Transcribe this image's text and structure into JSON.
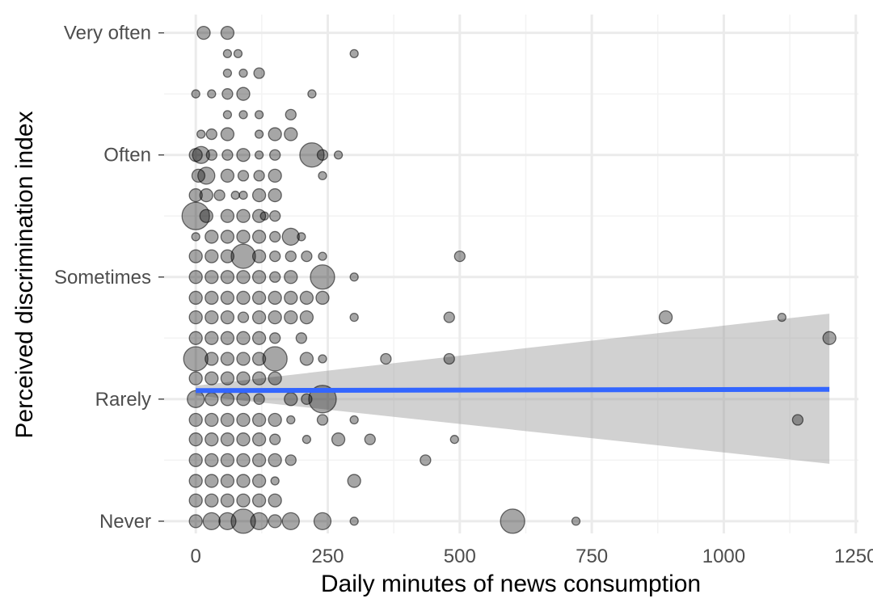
{
  "colors": {
    "background": "#ffffff",
    "grid_major": "#ebebeb",
    "grid_minor": "#f3f3f3",
    "points": "#000000",
    "regression_line": "#3366ff",
    "confidence_band": "#999999",
    "tick_text": "#4d4d4d",
    "axis_title": "#000000"
  },
  "chart_data": {
    "type": "scatter",
    "title": "",
    "xlabel": "Daily minutes of news consumption",
    "ylabel": "Perceived discrimination index",
    "xlim": [
      -60,
      1255
    ],
    "ylim": [
      -0.1,
      4.15
    ],
    "x_ticks": [
      0,
      250,
      500,
      750,
      1000,
      1250
    ],
    "x_tick_labels": [
      "0",
      "250",
      "500",
      "750",
      "1000",
      "1250"
    ],
    "x_minor_ticks": [
      125,
      375,
      625,
      875,
      1125
    ],
    "y_ticks": [
      0,
      1,
      2,
      3,
      4
    ],
    "y_tick_labels": [
      "Never",
      "Rarely",
      "Sometimes",
      "Often",
      "Very often"
    ],
    "y_minor_ticks": [
      0.5,
      1.5,
      2.5,
      3.5
    ],
    "grid": true,
    "legend": "none",
    "point_alpha": 0.35,
    "size_encoding": "point radius varies per observation (no legend shown)",
    "points": [
      {
        "x": 15,
        "y": 4.0,
        "r": 3
      },
      {
        "x": 60,
        "y": 4.0,
        "r": 3
      },
      {
        "x": 60,
        "y": 3.83,
        "r": 1
      },
      {
        "x": 80,
        "y": 3.83,
        "r": 1
      },
      {
        "x": 300,
        "y": 3.83,
        "r": 1
      },
      {
        "x": 60,
        "y": 3.67,
        "r": 1
      },
      {
        "x": 90,
        "y": 3.67,
        "r": 1
      },
      {
        "x": 120,
        "y": 3.67,
        "r": 2
      },
      {
        "x": 0,
        "y": 3.5,
        "r": 1
      },
      {
        "x": 30,
        "y": 3.5,
        "r": 1
      },
      {
        "x": 60,
        "y": 3.5,
        "r": 2
      },
      {
        "x": 90,
        "y": 3.5,
        "r": 3
      },
      {
        "x": 220,
        "y": 3.5,
        "r": 1
      },
      {
        "x": 60,
        "y": 3.33,
        "r": 1
      },
      {
        "x": 90,
        "y": 3.33,
        "r": 1
      },
      {
        "x": 120,
        "y": 3.33,
        "r": 1
      },
      {
        "x": 180,
        "y": 3.33,
        "r": 2
      },
      {
        "x": 10,
        "y": 3.17,
        "r": 1
      },
      {
        "x": 30,
        "y": 3.17,
        "r": 2
      },
      {
        "x": 60,
        "y": 3.17,
        "r": 3
      },
      {
        "x": 120,
        "y": 3.17,
        "r": 1
      },
      {
        "x": 150,
        "y": 3.17,
        "r": 3
      },
      {
        "x": 180,
        "y": 3.17,
        "r": 3
      },
      {
        "x": 0,
        "y": 3.0,
        "r": 3
      },
      {
        "x": 10,
        "y": 3.0,
        "r": 4
      },
      {
        "x": 30,
        "y": 3.0,
        "r": 2
      },
      {
        "x": 60,
        "y": 3.0,
        "r": 2
      },
      {
        "x": 90,
        "y": 3.0,
        "r": 3
      },
      {
        "x": 120,
        "y": 3.0,
        "r": 1
      },
      {
        "x": 150,
        "y": 3.0,
        "r": 2
      },
      {
        "x": 220,
        "y": 3.0,
        "r": 5
      },
      {
        "x": 240,
        "y": 3.0,
        "r": 2
      },
      {
        "x": 270,
        "y": 3.0,
        "r": 1
      },
      {
        "x": 5,
        "y": 2.83,
        "r": 3
      },
      {
        "x": 20,
        "y": 2.83,
        "r": 4
      },
      {
        "x": 60,
        "y": 2.83,
        "r": 3
      },
      {
        "x": 90,
        "y": 2.83,
        "r": 2
      },
      {
        "x": 120,
        "y": 2.83,
        "r": 2
      },
      {
        "x": 150,
        "y": 2.83,
        "r": 3
      },
      {
        "x": 240,
        "y": 2.83,
        "r": 1
      },
      {
        "x": 0,
        "y": 2.67,
        "r": 3
      },
      {
        "x": 20,
        "y": 2.67,
        "r": 3
      },
      {
        "x": 45,
        "y": 2.67,
        "r": 2
      },
      {
        "x": 75,
        "y": 2.67,
        "r": 1
      },
      {
        "x": 90,
        "y": 2.67,
        "r": 1
      },
      {
        "x": 120,
        "y": 2.67,
        "r": 3
      },
      {
        "x": 150,
        "y": 2.67,
        "r": 3
      },
      {
        "x": 0,
        "y": 2.5,
        "r": 6
      },
      {
        "x": 20,
        "y": 2.5,
        "r": 3
      },
      {
        "x": 60,
        "y": 2.5,
        "r": 3
      },
      {
        "x": 90,
        "y": 2.5,
        "r": 3
      },
      {
        "x": 120,
        "y": 2.5,
        "r": 3
      },
      {
        "x": 130,
        "y": 2.5,
        "r": 1
      },
      {
        "x": 150,
        "y": 2.5,
        "r": 2
      },
      {
        "x": 0,
        "y": 2.33,
        "r": 1
      },
      {
        "x": 30,
        "y": 2.33,
        "r": 3
      },
      {
        "x": 60,
        "y": 2.33,
        "r": 3
      },
      {
        "x": 90,
        "y": 2.33,
        "r": 3
      },
      {
        "x": 120,
        "y": 2.33,
        "r": 3
      },
      {
        "x": 150,
        "y": 2.33,
        "r": 2
      },
      {
        "x": 180,
        "y": 2.33,
        "r": 4
      },
      {
        "x": 200,
        "y": 2.33,
        "r": 1
      },
      {
        "x": 0,
        "y": 2.17,
        "r": 3
      },
      {
        "x": 30,
        "y": 2.17,
        "r": 3
      },
      {
        "x": 60,
        "y": 2.17,
        "r": 3
      },
      {
        "x": 90,
        "y": 2.17,
        "r": 5
      },
      {
        "x": 120,
        "y": 2.17,
        "r": 3
      },
      {
        "x": 150,
        "y": 2.17,
        "r": 2
      },
      {
        "x": 180,
        "y": 2.17,
        "r": 2
      },
      {
        "x": 210,
        "y": 2.17,
        "r": 2
      },
      {
        "x": 240,
        "y": 2.17,
        "r": 1
      },
      {
        "x": 500,
        "y": 2.17,
        "r": 2
      },
      {
        "x": 0,
        "y": 2.0,
        "r": 3
      },
      {
        "x": 30,
        "y": 2.0,
        "r": 3
      },
      {
        "x": 60,
        "y": 2.0,
        "r": 3
      },
      {
        "x": 90,
        "y": 2.0,
        "r": 3
      },
      {
        "x": 120,
        "y": 2.0,
        "r": 3
      },
      {
        "x": 150,
        "y": 2.0,
        "r": 2
      },
      {
        "x": 180,
        "y": 2.0,
        "r": 3
      },
      {
        "x": 240,
        "y": 2.0,
        "r": 5
      },
      {
        "x": 300,
        "y": 2.0,
        "r": 1
      },
      {
        "x": 0,
        "y": 1.83,
        "r": 3
      },
      {
        "x": 30,
        "y": 1.83,
        "r": 3
      },
      {
        "x": 60,
        "y": 1.83,
        "r": 3
      },
      {
        "x": 90,
        "y": 1.83,
        "r": 3
      },
      {
        "x": 120,
        "y": 1.83,
        "r": 3
      },
      {
        "x": 150,
        "y": 1.83,
        "r": 3
      },
      {
        "x": 180,
        "y": 1.83,
        "r": 3
      },
      {
        "x": 210,
        "y": 1.83,
        "r": 3
      },
      {
        "x": 240,
        "y": 1.83,
        "r": 3
      },
      {
        "x": 0,
        "y": 1.67,
        "r": 3
      },
      {
        "x": 30,
        "y": 1.67,
        "r": 3
      },
      {
        "x": 60,
        "y": 1.67,
        "r": 3
      },
      {
        "x": 90,
        "y": 1.67,
        "r": 2
      },
      {
        "x": 120,
        "y": 1.67,
        "r": 3
      },
      {
        "x": 150,
        "y": 1.67,
        "r": 3
      },
      {
        "x": 180,
        "y": 1.67,
        "r": 3
      },
      {
        "x": 210,
        "y": 1.67,
        "r": 3
      },
      {
        "x": 300,
        "y": 1.67,
        "r": 1
      },
      {
        "x": 480,
        "y": 1.67,
        "r": 2
      },
      {
        "x": 890,
        "y": 1.67,
        "r": 3
      },
      {
        "x": 1110,
        "y": 1.67,
        "r": 1
      },
      {
        "x": 0,
        "y": 1.5,
        "r": 3
      },
      {
        "x": 30,
        "y": 1.5,
        "r": 3
      },
      {
        "x": 60,
        "y": 1.5,
        "r": 3
      },
      {
        "x": 90,
        "y": 1.5,
        "r": 3
      },
      {
        "x": 120,
        "y": 1.5,
        "r": 3
      },
      {
        "x": 150,
        "y": 1.5,
        "r": 2
      },
      {
        "x": 200,
        "y": 1.5,
        "r": 2
      },
      {
        "x": 1200,
        "y": 1.5,
        "r": 3
      },
      {
        "x": 0,
        "y": 1.33,
        "r": 5
      },
      {
        "x": 30,
        "y": 1.33,
        "r": 3
      },
      {
        "x": 60,
        "y": 1.33,
        "r": 3
      },
      {
        "x": 90,
        "y": 1.33,
        "r": 3
      },
      {
        "x": 120,
        "y": 1.33,
        "r": 3
      },
      {
        "x": 150,
        "y": 1.33,
        "r": 5
      },
      {
        "x": 210,
        "y": 1.33,
        "r": 3
      },
      {
        "x": 240,
        "y": 1.33,
        "r": 1
      },
      {
        "x": 360,
        "y": 1.33,
        "r": 2
      },
      {
        "x": 480,
        "y": 1.33,
        "r": 2
      },
      {
        "x": 0,
        "y": 1.17,
        "r": 3
      },
      {
        "x": 30,
        "y": 1.17,
        "r": 3
      },
      {
        "x": 60,
        "y": 1.17,
        "r": 3
      },
      {
        "x": 90,
        "y": 1.17,
        "r": 3
      },
      {
        "x": 120,
        "y": 1.17,
        "r": 3
      },
      {
        "x": 150,
        "y": 1.17,
        "r": 3
      },
      {
        "x": 0,
        "y": 1.0,
        "r": 4
      },
      {
        "x": 30,
        "y": 1.0,
        "r": 3
      },
      {
        "x": 60,
        "y": 1.0,
        "r": 3
      },
      {
        "x": 90,
        "y": 1.0,
        "r": 3
      },
      {
        "x": 120,
        "y": 1.0,
        "r": 2
      },
      {
        "x": 180,
        "y": 1.0,
        "r": 3
      },
      {
        "x": 210,
        "y": 1.0,
        "r": 2
      },
      {
        "x": 240,
        "y": 1.0,
        "r": 6
      },
      {
        "x": 0,
        "y": 0.83,
        "r": 3
      },
      {
        "x": 30,
        "y": 0.83,
        "r": 3
      },
      {
        "x": 60,
        "y": 0.83,
        "r": 3
      },
      {
        "x": 90,
        "y": 0.83,
        "r": 3
      },
      {
        "x": 120,
        "y": 0.83,
        "r": 3
      },
      {
        "x": 150,
        "y": 0.83,
        "r": 3
      },
      {
        "x": 180,
        "y": 0.83,
        "r": 1
      },
      {
        "x": 240,
        "y": 0.83,
        "r": 2
      },
      {
        "x": 300,
        "y": 0.83,
        "r": 1
      },
      {
        "x": 1140,
        "y": 0.83,
        "r": 2
      },
      {
        "x": 0,
        "y": 0.67,
        "r": 3
      },
      {
        "x": 30,
        "y": 0.67,
        "r": 3
      },
      {
        "x": 60,
        "y": 0.67,
        "r": 3
      },
      {
        "x": 90,
        "y": 0.67,
        "r": 3
      },
      {
        "x": 120,
        "y": 0.67,
        "r": 3
      },
      {
        "x": 150,
        "y": 0.67,
        "r": 2
      },
      {
        "x": 210,
        "y": 0.67,
        "r": 1
      },
      {
        "x": 270,
        "y": 0.67,
        "r": 3
      },
      {
        "x": 330,
        "y": 0.67,
        "r": 2
      },
      {
        "x": 490,
        "y": 0.67,
        "r": 1
      },
      {
        "x": 0,
        "y": 0.5,
        "r": 3
      },
      {
        "x": 30,
        "y": 0.5,
        "r": 3
      },
      {
        "x": 60,
        "y": 0.5,
        "r": 3
      },
      {
        "x": 90,
        "y": 0.5,
        "r": 3
      },
      {
        "x": 120,
        "y": 0.5,
        "r": 3
      },
      {
        "x": 150,
        "y": 0.5,
        "r": 3
      },
      {
        "x": 180,
        "y": 0.5,
        "r": 2
      },
      {
        "x": 435,
        "y": 0.5,
        "r": 2
      },
      {
        "x": 0,
        "y": 0.33,
        "r": 3
      },
      {
        "x": 30,
        "y": 0.33,
        "r": 3
      },
      {
        "x": 60,
        "y": 0.33,
        "r": 3
      },
      {
        "x": 90,
        "y": 0.33,
        "r": 3
      },
      {
        "x": 120,
        "y": 0.33,
        "r": 3
      },
      {
        "x": 150,
        "y": 0.33,
        "r": 1
      },
      {
        "x": 300,
        "y": 0.33,
        "r": 3
      },
      {
        "x": 0,
        "y": 0.17,
        "r": 3
      },
      {
        "x": 30,
        "y": 0.17,
        "r": 3
      },
      {
        "x": 60,
        "y": 0.17,
        "r": 3
      },
      {
        "x": 90,
        "y": 0.17,
        "r": 3
      },
      {
        "x": 120,
        "y": 0.17,
        "r": 3
      },
      {
        "x": 150,
        "y": 0.17,
        "r": 3
      },
      {
        "x": 0,
        "y": 0.0,
        "r": 3
      },
      {
        "x": 30,
        "y": 0.0,
        "r": 4
      },
      {
        "x": 60,
        "y": 0.0,
        "r": 4
      },
      {
        "x": 90,
        "y": 0.0,
        "r": 5
      },
      {
        "x": 120,
        "y": 0.0,
        "r": 4
      },
      {
        "x": 150,
        "y": 0.0,
        "r": 3
      },
      {
        "x": 180,
        "y": 0.0,
        "r": 4
      },
      {
        "x": 240,
        "y": 0.0,
        "r": 4
      },
      {
        "x": 300,
        "y": 0.0,
        "r": 1
      },
      {
        "x": 600,
        "y": 0.0,
        "r": 5
      },
      {
        "x": 720,
        "y": 0.0,
        "r": 1
      }
    ],
    "regression": {
      "method": "linear",
      "x_range": [
        0,
        1200
      ],
      "fit": [
        1.07,
        1.08
      ],
      "ci_lower": [
        1.03,
        0.47
      ],
      "ci_upper": [
        1.11,
        1.7
      ]
    }
  }
}
